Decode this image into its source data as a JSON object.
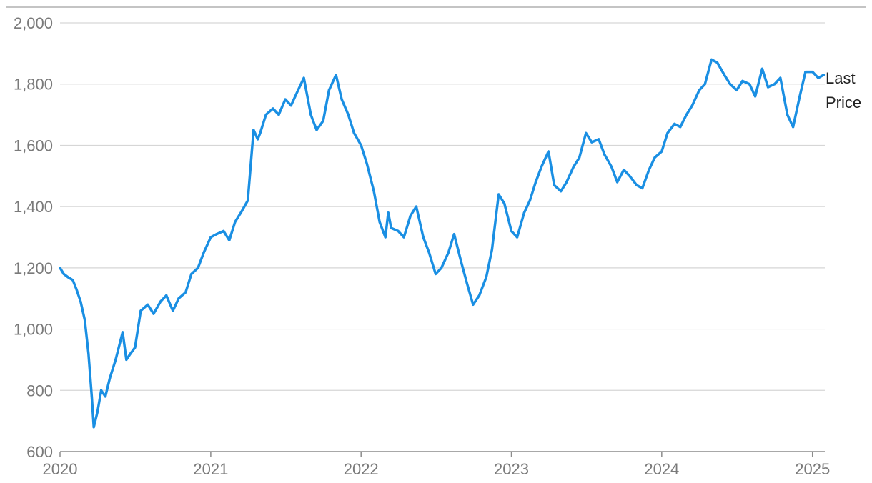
{
  "chart_data": {
    "type": "line",
    "title": "",
    "xlabel": "",
    "ylabel": "",
    "xlim": [
      "2020-01-01",
      "2025-01-31"
    ],
    "ylim": [
      600,
      2000
    ],
    "x_ticks": [
      "2020",
      "2021",
      "2022",
      "2023",
      "2024",
      "2025"
    ],
    "y_ticks": [
      600,
      800,
      1000,
      1200,
      1400,
      1600,
      1800,
      2000
    ],
    "y_tick_labels": [
      "600",
      "800",
      "1,000",
      "1,200",
      "1,400",
      "1,600",
      "1,800",
      "2,000"
    ],
    "grid": true,
    "legend": "end-of-line label",
    "colors": {
      "line": "#1a8fe3",
      "grid": "#d6d6d6",
      "axis": "#8c8c8c",
      "top_rule": "#b0b0b0"
    },
    "series": [
      {
        "name": "Last Price",
        "label_lines": [
          "Last",
          "Price"
        ],
        "x": [
          "2020-01-01",
          "2020-01-10",
          "2020-01-20",
          "2020-02-01",
          "2020-02-10",
          "2020-02-20",
          "2020-03-01",
          "2020-03-10",
          "2020-03-18",
          "2020-03-23",
          "2020-04-01",
          "2020-04-10",
          "2020-04-20",
          "2020-05-01",
          "2020-05-15",
          "2020-06-01",
          "2020-06-10",
          "2020-06-20",
          "2020-07-01",
          "2020-07-15",
          "2020-08-01",
          "2020-08-15",
          "2020-09-01",
          "2020-09-15",
          "2020-10-01",
          "2020-10-15",
          "2020-11-01",
          "2020-11-15",
          "2020-12-01",
          "2020-12-15",
          "2021-01-01",
          "2021-01-15",
          "2021-02-01",
          "2021-02-15",
          "2021-03-01",
          "2021-03-15",
          "2021-04-01",
          "2021-04-15",
          "2021-04-25",
          "2021-05-01",
          "2021-05-15",
          "2021-06-01",
          "2021-06-15",
          "2021-07-01",
          "2021-07-15",
          "2021-08-01",
          "2021-08-15",
          "2021-09-01",
          "2021-09-15",
          "2021-10-01",
          "2021-10-15",
          "2021-11-01",
          "2021-11-15",
          "2021-12-01",
          "2021-12-15",
          "2022-01-01",
          "2022-01-15",
          "2022-02-01",
          "2022-02-15",
          "2022-03-01",
          "2022-03-08",
          "2022-03-15",
          "2022-04-01",
          "2022-04-15",
          "2022-05-01",
          "2022-05-15",
          "2022-06-01",
          "2022-06-15",
          "2022-07-01",
          "2022-07-15",
          "2022-08-01",
          "2022-08-15",
          "2022-09-01",
          "2022-09-15",
          "2022-09-30",
          "2022-10-15",
          "2022-11-01",
          "2022-11-15",
          "2022-12-01",
          "2022-12-15",
          "2023-01-01",
          "2023-01-15",
          "2023-02-01",
          "2023-02-15",
          "2023-03-01",
          "2023-03-15",
          "2023-04-01",
          "2023-04-15",
          "2023-05-01",
          "2023-05-15",
          "2023-06-01",
          "2023-06-15",
          "2023-07-01",
          "2023-07-15",
          "2023-08-01",
          "2023-08-15",
          "2023-09-01",
          "2023-09-15",
          "2023-10-01",
          "2023-10-15",
          "2023-11-01",
          "2023-11-15",
          "2023-12-01",
          "2023-12-15",
          "2024-01-01",
          "2024-01-15",
          "2024-02-01",
          "2024-02-15",
          "2024-03-01",
          "2024-03-15",
          "2024-04-01",
          "2024-04-15",
          "2024-05-01",
          "2024-05-15",
          "2024-06-01",
          "2024-06-15",
          "2024-07-01",
          "2024-07-15",
          "2024-08-01",
          "2024-08-15",
          "2024-09-01",
          "2024-09-15",
          "2024-10-01",
          "2024-10-15",
          "2024-11-01",
          "2024-11-15",
          "2024-12-01",
          "2024-12-15",
          "2025-01-01",
          "2025-01-15",
          "2025-01-28"
        ],
        "values": [
          1200,
          1180,
          1170,
          1160,
          1130,
          1090,
          1030,
          920,
          780,
          680,
          730,
          800,
          780,
          840,
          900,
          990,
          900,
          920,
          940,
          1060,
          1080,
          1050,
          1090,
          1110,
          1060,
          1100,
          1120,
          1180,
          1200,
          1250,
          1300,
          1310,
          1320,
          1290,
          1350,
          1380,
          1420,
          1650,
          1620,
          1640,
          1700,
          1720,
          1700,
          1750,
          1730,
          1780,
          1820,
          1700,
          1650,
          1680,
          1780,
          1830,
          1750,
          1700,
          1640,
          1600,
          1540,
          1450,
          1350,
          1300,
          1380,
          1330,
          1320,
          1300,
          1370,
          1400,
          1300,
          1250,
          1180,
          1200,
          1250,
          1310,
          1220,
          1150,
          1080,
          1110,
          1170,
          1260,
          1440,
          1410,
          1320,
          1300,
          1380,
          1420,
          1480,
          1530,
          1580,
          1470,
          1450,
          1480,
          1530,
          1560,
          1640,
          1610,
          1620,
          1570,
          1530,
          1480,
          1520,
          1500,
          1470,
          1460,
          1520,
          1560,
          1580,
          1640,
          1670,
          1660,
          1700,
          1730,
          1780,
          1800,
          1880,
          1870,
          1830,
          1800,
          1780,
          1810,
          1800,
          1760,
          1850,
          1790,
          1800,
          1820,
          1700,
          1660,
          1760,
          1840,
          1840,
          1820,
          1830
        ]
      }
    ]
  }
}
